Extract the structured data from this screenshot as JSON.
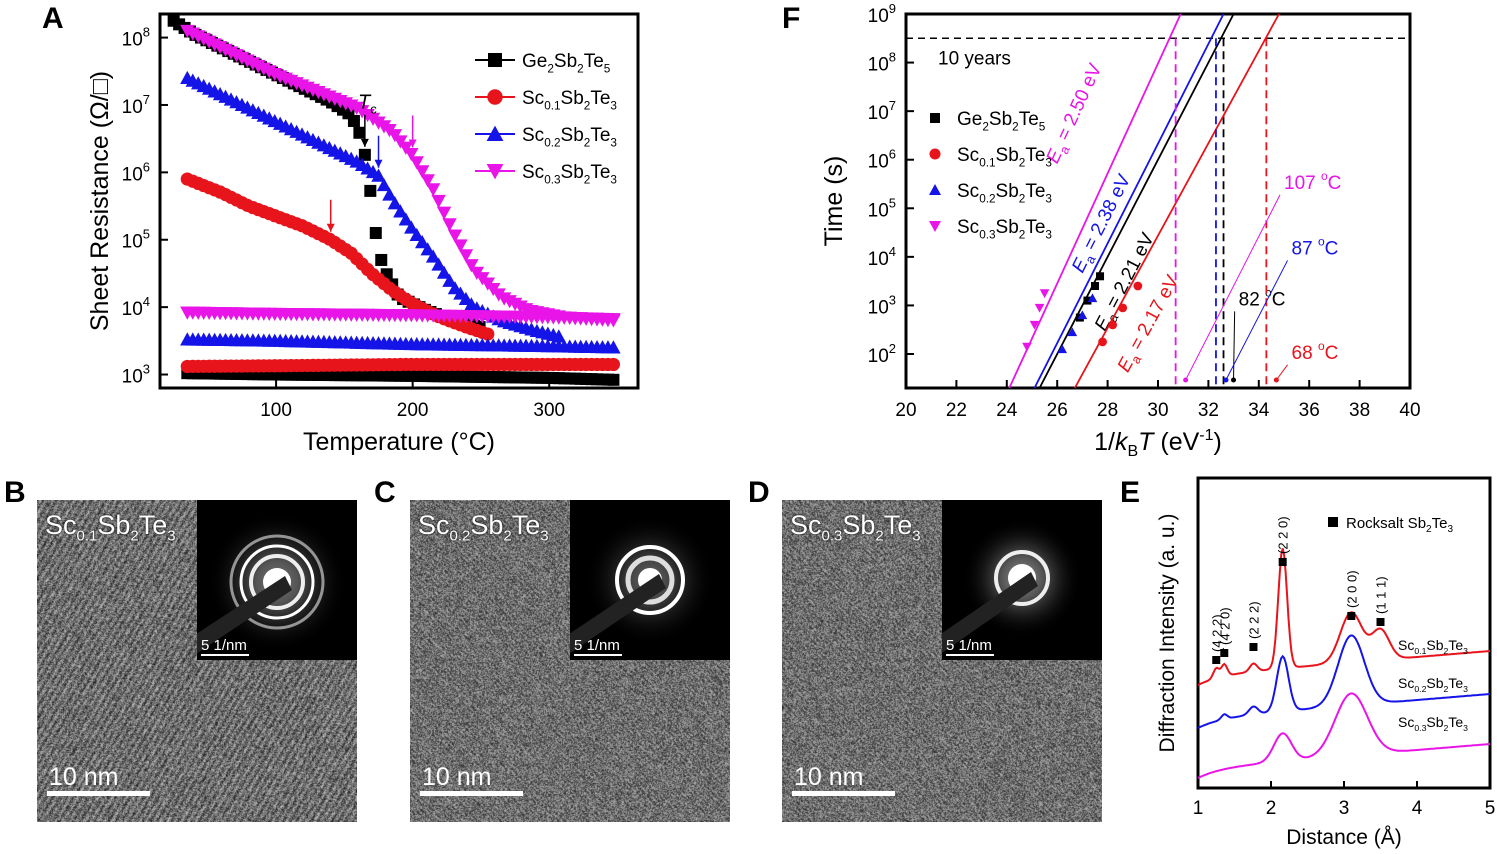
{
  "panel_labels": {
    "A": "A",
    "B": "B",
    "C": "C",
    "D": "D",
    "E": "E",
    "F": "F"
  },
  "chart_data": [
    {
      "panel": "A",
      "type": "scatter",
      "xlabel": "Temperature (°C)",
      "ylabel": "Sheet Resistance (Ω/□)",
      "xlim": [
        15,
        365
      ],
      "ylim_log10": [
        2.8,
        8.35
      ],
      "xticks": [
        "100",
        "200",
        "300"
      ],
      "yticks": [
        "10",
        "10",
        "10",
        "10",
        "10",
        "10"
      ],
      "ytick_exponents": [
        "3",
        "4",
        "5",
        "6",
        "7",
        "8"
      ],
      "annotation": {
        "text": "T",
        "sub": "c"
      },
      "series": [
        {
          "name": "Ge2Sb2Te5",
          "label": {
            "a": "Ge",
            "s1": "2",
            "b": "Sb",
            "s2": "2",
            "c": "Te",
            "s3": "5"
          },
          "color": "#000000",
          "marker": "square",
          "heating": [
            [
              25,
              8.25
            ],
            [
              40,
              8.05
            ],
            [
              60,
              7.85
            ],
            [
              80,
              7.65
            ],
            [
              100,
              7.45
            ],
            [
              120,
              7.25
            ],
            [
              140,
              7.05
            ],
            [
              155,
              6.85
            ],
            [
              163,
              6.5
            ],
            [
              168,
              5.9
            ],
            [
              172,
              5.2
            ],
            [
              178,
              4.6
            ],
            [
              190,
              4.15
            ],
            [
              210,
              3.95
            ],
            [
              230,
              3.8
            ],
            [
              250,
              3.7
            ]
          ],
          "cooling": [
            [
              35,
              3.02
            ],
            [
              100,
              3.0
            ],
            [
              200,
              2.98
            ],
            [
              300,
              2.95
            ],
            [
              350,
              2.92
            ]
          ]
        },
        {
          "name": "Sc0.1Sb2Te3",
          "label": {
            "a": "Sc",
            "s1": "0.1",
            "b": "Sb",
            "s2": "2",
            "c": "Te",
            "s3": "3"
          },
          "color": "#e8141b",
          "marker": "circle",
          "heating": [
            [
              35,
              5.9
            ],
            [
              60,
              5.7
            ],
            [
              80,
              5.5
            ],
            [
              100,
              5.35
            ],
            [
              120,
              5.2
            ],
            [
              140,
              5.0
            ],
            [
              155,
              4.8
            ],
            [
              170,
              4.5
            ],
            [
              185,
              4.25
            ],
            [
              200,
              4.05
            ],
            [
              220,
              3.85
            ],
            [
              240,
              3.7
            ],
            [
              255,
              3.6
            ]
          ],
          "cooling": [
            [
              35,
              3.12
            ],
            [
              100,
              3.13
            ],
            [
              200,
              3.15
            ],
            [
              300,
              3.15
            ],
            [
              350,
              3.15
            ]
          ]
        },
        {
          "name": "Sc0.2Sb2Te3",
          "label": {
            "a": "Sc",
            "s1": "0.2",
            "b": "Sb",
            "s2": "2",
            "c": "Te",
            "s3": "3"
          },
          "color": "#1414e8",
          "marker": "triangle-up",
          "heating": [
            [
              35,
              7.4
            ],
            [
              60,
              7.15
            ],
            [
              80,
              6.95
            ],
            [
              100,
              6.75
            ],
            [
              120,
              6.55
            ],
            [
              140,
              6.35
            ],
            [
              160,
              6.15
            ],
            [
              175,
              5.95
            ],
            [
              185,
              5.6
            ],
            [
              200,
              5.15
            ],
            [
              215,
              4.75
            ],
            [
              230,
              4.3
            ],
            [
              245,
              4.0
            ],
            [
              265,
              3.8
            ],
            [
              290,
              3.65
            ],
            [
              310,
              3.55
            ]
          ],
          "cooling": [
            [
              35,
              3.52
            ],
            [
              100,
              3.5
            ],
            [
              200,
              3.45
            ],
            [
              300,
              3.42
            ],
            [
              350,
              3.4
            ]
          ]
        },
        {
          "name": "Sc0.3Sb2Te3",
          "label": {
            "a": "Sc",
            "s1": "0.3",
            "b": "Sb",
            "s2": "2",
            "c": "Te",
            "s3": "3"
          },
          "color": "#e814e8",
          "marker": "triangle-down",
          "heating": [
            [
              35,
              8.1
            ],
            [
              60,
              7.85
            ],
            [
              80,
              7.65
            ],
            [
              100,
              7.45
            ],
            [
              130,
              7.2
            ],
            [
              160,
              6.95
            ],
            [
              185,
              6.6
            ],
            [
              200,
              6.25
            ],
            [
              215,
              5.75
            ],
            [
              230,
              5.1
            ],
            [
              245,
              4.55
            ],
            [
              265,
              4.15
            ],
            [
              285,
              3.95
            ],
            [
              310,
              3.85
            ],
            [
              350,
              3.8
            ]
          ],
          "cooling": [
            [
              35,
              3.92
            ],
            [
              100,
              3.9
            ],
            [
              200,
              3.88
            ],
            [
              300,
              3.85
            ],
            [
              350,
              3.82
            ]
          ]
        }
      ],
      "arrows": [
        {
          "x": 165,
          "color": "#000000"
        },
        {
          "x": 140,
          "color": "#e8141b"
        },
        {
          "x": 175,
          "color": "#1414e8"
        },
        {
          "x": 200,
          "color": "#e814e8"
        }
      ]
    },
    {
      "panel": "F",
      "type": "scatter",
      "xlabel": "1/kBT (eV-1)",
      "xlabel_parts": {
        "a": "1/",
        "k": "k",
        "sub": "B",
        "t": "T",
        "b": " (eV",
        "sup": "-1",
        "c": ")"
      },
      "ylabel": "Time (s)",
      "xlim": [
        20,
        40
      ],
      "ylim_log10": [
        1.3,
        9
      ],
      "xticks": [
        "20",
        "22",
        "24",
        "26",
        "28",
        "30",
        "32",
        "34",
        "36",
        "38",
        "40"
      ],
      "yticks": [
        "10",
        "10",
        "10",
        "10",
        "10",
        "10",
        "10",
        "10"
      ],
      "ytick_exponents": [
        "2",
        "3",
        "4",
        "5",
        "6",
        "7",
        "8",
        "9"
      ],
      "ten_year_label": "10 years",
      "ten_year_log10": 8.5,
      "series": [
        {
          "name": "Ge2Sb2Te5",
          "label": {
            "a": "Ge",
            "s1": "2",
            "b": "Sb",
            "s2": "2",
            "c": "Te",
            "s3": "5"
          },
          "color": "#000000",
          "marker": "square",
          "points": [
            [
              26.9,
              2.75
            ],
            [
              27.2,
              3.1
            ],
            [
              27.5,
              3.4
            ],
            [
              27.7,
              3.6
            ]
          ],
          "fit": [
            [
              25.3,
              1.3
            ],
            [
              33.0,
              9.0
            ]
          ],
          "Ea_label": "= 2.21 eV",
          "Ea": 2.21,
          "Ea_pos": [
            27.9,
            2.45
          ],
          "ten_year_x": 32.6,
          "temp_label": "82 °C",
          "temp_num": "82",
          "temp_pos": [
            33.2,
            3.0
          ]
        },
        {
          "name": "Sc0.1Sb2Te3",
          "label": {
            "a": "Sc",
            "s1": "0.1",
            "b": "Sb",
            "s2": "2",
            "c": "Te",
            "s3": "3"
          },
          "color": "#e8141b",
          "marker": "circle",
          "points": [
            [
              27.8,
              2.25
            ],
            [
              28.2,
              2.6
            ],
            [
              28.6,
              2.95
            ],
            [
              29.2,
              3.4
            ]
          ],
          "fit": [
            [
              26.7,
              1.3
            ],
            [
              34.8,
              9.0
            ]
          ],
          "Ea_label": "= 2.17 eV",
          "Ea": 2.17,
          "Ea_pos": [
            28.8,
            1.6
          ],
          "ten_year_x": 34.3,
          "temp_label": "68 °C",
          "temp_num": "68",
          "temp_pos": [
            35.3,
            1.9
          ]
        },
        {
          "name": "Sc0.2Sb2Te3",
          "label": {
            "a": "Sc",
            "s1": "0.2",
            "b": "Sb",
            "s2": "2",
            "c": "Te",
            "s3": "3"
          },
          "color": "#1414e8",
          "marker": "triangle-up",
          "points": [
            [
              26.2,
              2.1
            ],
            [
              26.6,
              2.45
            ],
            [
              27.0,
              2.8
            ],
            [
              27.4,
              3.15
            ]
          ],
          "fit": [
            [
              25.1,
              1.3
            ],
            [
              32.6,
              9.0
            ]
          ],
          "Ea_label": "= 2.38 eV",
          "Ea": 2.38,
          "Ea_pos": [
            27.0,
            3.65
          ],
          "ten_year_x": 32.3,
          "temp_label": "87 °C",
          "temp_num": "87",
          "temp_pos": [
            35.3,
            4.05
          ]
        },
        {
          "name": "Sc0.3Sb2Te3",
          "label": {
            "a": "Sc",
            "s1": "0.3",
            "b": "Sb",
            "s2": "2",
            "c": "Te",
            "s3": "3"
          },
          "color": "#e814e8",
          "marker": "triangle-down",
          "points": [
            [
              24.8,
              2.15
            ],
            [
              25.1,
              2.6
            ],
            [
              25.3,
              2.95
            ],
            [
              25.5,
              3.25
            ]
          ],
          "fit": [
            [
              24.1,
              1.3
            ],
            [
              30.9,
              9.0
            ]
          ],
          "Ea_label": "= 2.50 eV",
          "Ea": 2.5,
          "Ea_pos": [
            26.0,
            5.9
          ],
          "ten_year_x": 30.7,
          "temp_label": "107 °C",
          "temp_num": "107",
          "temp_pos": [
            35.0,
            5.4
          ]
        }
      ]
    },
    {
      "panel": "E",
      "type": "line",
      "xlabel": "Distance (Å)",
      "ylabel": "Diffraction Intensity (a. u.)",
      "xlim": [
        1,
        5
      ],
      "xticks": [
        "1",
        "2",
        "3",
        "4",
        "5"
      ],
      "legend": "Rocksalt Sb2Te3",
      "legend_parts": {
        "a": "Rocksalt Sb",
        "s1": "2",
        "b": "Te",
        "s2": "3"
      },
      "peaks": [
        {
          "label": "(4 2 2)",
          "x": 1.25
        },
        {
          "label": "(4 2 0)",
          "x": 1.36
        },
        {
          "label": "(2 2 2)",
          "x": 1.76
        },
        {
          "label": "(2 2 0)",
          "x": 2.16
        },
        {
          "label": "(2 0 0)",
          "x": 3.1
        },
        {
          "label": "(1 1 1)",
          "x": 3.5
        }
      ],
      "series": [
        {
          "name": "Sc0.1Sb2Te3",
          "label": {
            "a": "Sc",
            "s1": "0.1",
            "b": "Sb",
            "s2": "2",
            "c": "Te",
            "s3": "3"
          },
          "color": "#e8141b",
          "offset": 0.3
        },
        {
          "name": "Sc0.2Sb2Te3",
          "label": {
            "a": "Sc",
            "s1": "0.2",
            "b": "Sb",
            "s2": "2",
            "c": "Te",
            "s3": "3"
          },
          "color": "#1414e8",
          "offset": 0.18
        },
        {
          "name": "Sc0.3Sb2Te3",
          "label": {
            "a": "Sc",
            "s1": "0.3",
            "b": "Sb",
            "s2": "2",
            "c": "Te",
            "s3": "3"
          },
          "color": "#e814e8",
          "offset": 0.0
        }
      ]
    }
  ],
  "tem_panels": [
    {
      "letter": "B",
      "title": {
        "a": "Sc",
        "s1": "0.1",
        "b": "Sb",
        "s2": "2",
        "c": "Te",
        "s3": "3"
      },
      "scale": "10 nm",
      "inset_scale": "5 1/nm"
    },
    {
      "letter": "C",
      "title": {
        "a": "Sc",
        "s1": "0.2",
        "b": "Sb",
        "s2": "2",
        "c": "Te",
        "s3": "3"
      },
      "scale": "10 nm",
      "inset_scale": "5 1/nm"
    },
    {
      "letter": "D",
      "title": {
        "a": "Sc",
        "s1": "0.3",
        "b": "Sb",
        "s2": "2",
        "c": "Te",
        "s3": "3"
      },
      "scale": "10 nm",
      "inset_scale": "5 1/nm"
    }
  ]
}
